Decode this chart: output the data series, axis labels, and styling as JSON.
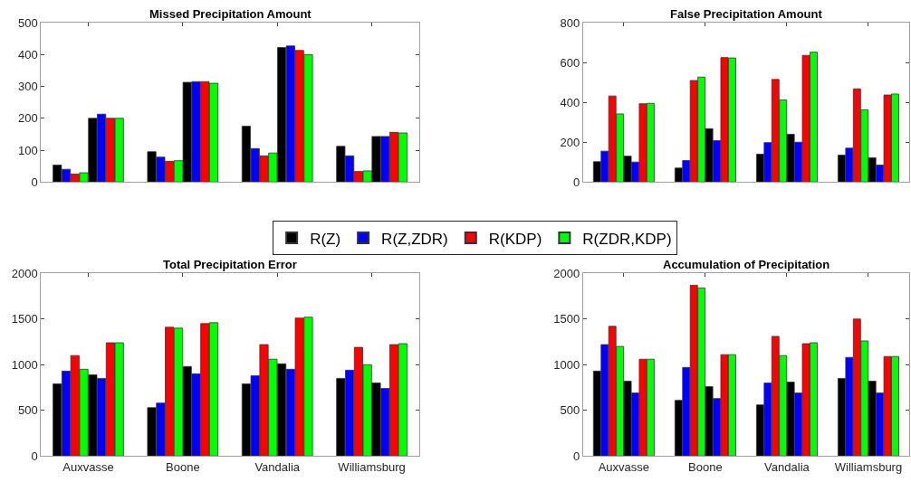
{
  "chart_data": [
    {
      "type": "bar",
      "title": "Missed Precipitation Amount",
      "categories": [
        null,
        null,
        null,
        null
      ],
      "ylim": [
        0,
        500
      ],
      "yticks": [
        0,
        100,
        200,
        300,
        400,
        500
      ],
      "legend": "bottom",
      "series": [
        {
          "name": "R(Z)",
          "color": "#000000",
          "values": [
            53,
            95,
            175,
            112
          ]
        },
        {
          "name": "R(Z,ZDR)",
          "color": "#0000ff",
          "values": [
            40,
            78,
            105,
            82
          ]
        },
        {
          "name": "R(KDP)",
          "color": "#ff0000",
          "values": [
            25,
            65,
            82,
            33
          ]
        },
        {
          "name": "R(ZDR,KDP)",
          "color": "#00ff00",
          "values": [
            29,
            67,
            91,
            35
          ]
        },
        {
          "color": "#000000",
          "values": [
            200,
            313,
            422,
            143
          ]
        },
        {
          "color": "#0000ff",
          "values": [
            213,
            315,
            427,
            143
          ]
        },
        {
          "color": "#ff0000",
          "values": [
            200,
            315,
            413,
            156
          ]
        },
        {
          "color": "#00ff00",
          "values": [
            200,
            310,
            400,
            154
          ]
        }
      ]
    },
    {
      "type": "bar",
      "title": "False Precipitation Amount",
      "categories": [
        null,
        null,
        null,
        null
      ],
      "ylim": [
        0,
        800
      ],
      "yticks": [
        0,
        200,
        400,
        600,
        800
      ],
      "series": [
        {
          "color": "#000000",
          "values": [
            102,
            70,
            140,
            135
          ]
        },
        {
          "color": "#0000ff",
          "values": [
            155,
            108,
            198,
            170
          ]
        },
        {
          "color": "#ff0000",
          "values": [
            432,
            510,
            515,
            468
          ]
        },
        {
          "color": "#00ff00",
          "values": [
            342,
            527,
            412,
            362
          ]
        },
        {
          "color": "#000000",
          "values": [
            130,
            268,
            240,
            122
          ]
        },
        {
          "color": "#0000ff",
          "values": [
            100,
            208,
            200,
            85
          ]
        },
        {
          "color": "#ff0000",
          "values": [
            393,
            625,
            636,
            437
          ]
        },
        {
          "color": "#00ff00",
          "values": [
            395,
            623,
            652,
            442
          ]
        }
      ]
    },
    {
      "type": "bar",
      "title": "Total Precipitation Error",
      "categories": [
        "Auxvasse",
        "Boone",
        "Vandalia",
        "Williamsburg"
      ],
      "ylim": [
        0,
        2000
      ],
      "yticks": [
        0,
        500,
        1000,
        1500,
        2000
      ],
      "series": [
        {
          "color": "#000000",
          "values": [
            790,
            530,
            790,
            850
          ]
        },
        {
          "color": "#0000ff",
          "values": [
            930,
            580,
            880,
            940
          ]
        },
        {
          "color": "#ff0000",
          "values": [
            1100,
            1410,
            1220,
            1190
          ]
        },
        {
          "color": "#00ff00",
          "values": [
            950,
            1400,
            1060,
            1000
          ]
        },
        {
          "color": "#000000",
          "values": [
            890,
            980,
            1010,
            800
          ]
        },
        {
          "color": "#0000ff",
          "values": [
            850,
            900,
            950,
            740
          ]
        },
        {
          "color": "#ff0000",
          "values": [
            1240,
            1450,
            1510,
            1220
          ]
        },
        {
          "color": "#00ff00",
          "values": [
            1240,
            1460,
            1520,
            1230
          ]
        }
      ]
    },
    {
      "type": "bar",
      "title": "Accumulation of Precipitation",
      "categories": [
        "Auxvasse",
        "Boone",
        "Vandalia",
        "Williamsburg"
      ],
      "ylim": [
        0,
        2000
      ],
      "yticks": [
        0,
        500,
        1000,
        1500,
        2000
      ],
      "series": [
        {
          "color": "#000000",
          "values": [
            930,
            610,
            560,
            850
          ]
        },
        {
          "color": "#0000ff",
          "values": [
            1220,
            970,
            800,
            1080
          ]
        },
        {
          "color": "#ff0000",
          "values": [
            1420,
            1870,
            1310,
            1500
          ]
        },
        {
          "color": "#00ff00",
          "values": [
            1200,
            1840,
            1100,
            1260
          ]
        },
        {
          "color": "#000000",
          "values": [
            820,
            760,
            810,
            820
          ]
        },
        {
          "color": "#0000ff",
          "values": [
            690,
            630,
            690,
            690
          ]
        },
        {
          "color": "#ff0000",
          "values": [
            1060,
            1110,
            1230,
            1090
          ]
        },
        {
          "color": "#00ff00",
          "values": [
            1060,
            1110,
            1240,
            1090
          ]
        }
      ]
    }
  ]
}
